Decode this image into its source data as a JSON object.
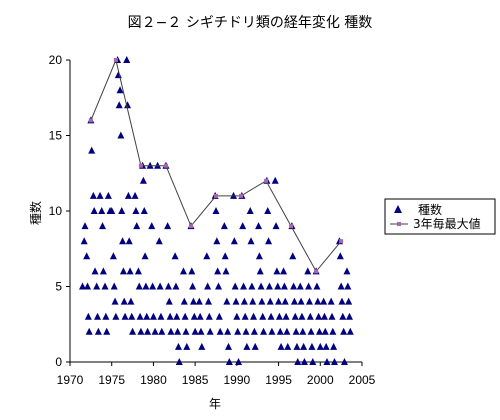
{
  "chart_data": {
    "type": "scatter",
    "title": "図２−２ シギチドリ類の経年変化 種数",
    "xlabel": "年",
    "ylabel": "種数",
    "xlim": [
      1970,
      2005
    ],
    "ylim": [
      0,
      20
    ],
    "xticks": [
      1970,
      1975,
      1980,
      1985,
      1990,
      1995,
      2000,
      2005
    ],
    "yticks": [
      0,
      5,
      10,
      15,
      20
    ],
    "grid": false,
    "legend_position": "right",
    "colors": {
      "species": "#000080",
      "max_line": "#404040",
      "max_marker": "#aa66aa"
    },
    "series": [
      {
        "name": "種数",
        "marker": "triangle",
        "points": [
          [
            1971.5,
            5
          ],
          [
            1971.7,
            8
          ],
          [
            1971.8,
            9
          ],
          [
            1972,
            7
          ],
          [
            1972.1,
            5
          ],
          [
            1972.2,
            3
          ],
          [
            1972.3,
            2
          ],
          [
            1972.5,
            16
          ],
          [
            1972.6,
            14
          ],
          [
            1972.8,
            11
          ],
          [
            1972.9,
            10
          ],
          [
            1973,
            6
          ],
          [
            1973.2,
            5
          ],
          [
            1973.3,
            3
          ],
          [
            1973.4,
            2
          ],
          [
            1973.6,
            11
          ],
          [
            1973.8,
            10
          ],
          [
            1973.9,
            9
          ],
          [
            1974,
            6
          ],
          [
            1974.2,
            5
          ],
          [
            1974.3,
            3
          ],
          [
            1974.4,
            2
          ],
          [
            1974.6,
            11
          ],
          [
            1974.8,
            10
          ],
          [
            1975,
            10
          ],
          [
            1975.2,
            7
          ],
          [
            1975.3,
            5
          ],
          [
            1975.4,
            4
          ],
          [
            1975.5,
            3
          ],
          [
            1975.7,
            20
          ],
          [
            1975.8,
            19
          ],
          [
            1975.9,
            17
          ],
          [
            1976,
            18
          ],
          [
            1976.1,
            15
          ],
          [
            1976.2,
            10
          ],
          [
            1976.3,
            8
          ],
          [
            1976.4,
            6
          ],
          [
            1976.5,
            4
          ],
          [
            1976.6,
            3
          ],
          [
            1976.8,
            20
          ],
          [
            1976.9,
            17
          ],
          [
            1977,
            11
          ],
          [
            1977.1,
            8
          ],
          [
            1977.2,
            6
          ],
          [
            1977.3,
            4
          ],
          [
            1977.4,
            3
          ],
          [
            1977.5,
            2
          ],
          [
            1977.8,
            11
          ],
          [
            1977.9,
            10
          ],
          [
            1978,
            9
          ],
          [
            1978.2,
            6
          ],
          [
            1978.3,
            5
          ],
          [
            1978.4,
            3
          ],
          [
            1978.5,
            2
          ],
          [
            1978.7,
            13
          ],
          [
            1978.8,
            12
          ],
          [
            1978.9,
            10
          ],
          [
            1979,
            7
          ],
          [
            1979.1,
            5
          ],
          [
            1979.2,
            3
          ],
          [
            1979.3,
            2
          ],
          [
            1979.6,
            13
          ],
          [
            1979.8,
            9
          ],
          [
            1979.9,
            5
          ],
          [
            1980,
            3
          ],
          [
            1980.2,
            2
          ],
          [
            1980.5,
            13
          ],
          [
            1980.7,
            8
          ],
          [
            1980.8,
            5
          ],
          [
            1980.9,
            3
          ],
          [
            1981,
            2
          ],
          [
            1981.5,
            13
          ],
          [
            1981.7,
            9
          ],
          [
            1981.8,
            5
          ],
          [
            1981.9,
            4
          ],
          [
            1982,
            3
          ],
          [
            1982.1,
            2
          ],
          [
            1982.6,
            7
          ],
          [
            1982.7,
            5
          ],
          [
            1982.8,
            3
          ],
          [
            1982.9,
            2
          ],
          [
            1983,
            1
          ],
          [
            1983.1,
            0
          ],
          [
            1983.6,
            6
          ],
          [
            1983.7,
            4
          ],
          [
            1983.8,
            3
          ],
          [
            1983.9,
            2
          ],
          [
            1984,
            1
          ],
          [
            1984.5,
            9
          ],
          [
            1984.6,
            6
          ],
          [
            1984.7,
            5
          ],
          [
            1984.8,
            4
          ],
          [
            1984.9,
            3
          ],
          [
            1985,
            2
          ],
          [
            1985.5,
            4
          ],
          [
            1985.6,
            3
          ],
          [
            1985.7,
            2
          ],
          [
            1985.8,
            1
          ],
          [
            1986.4,
            7
          ],
          [
            1986.5,
            5
          ],
          [
            1986.6,
            4
          ],
          [
            1986.7,
            3
          ],
          [
            1986.8,
            2
          ],
          [
            1987.4,
            11
          ],
          [
            1987.5,
            10
          ],
          [
            1987.6,
            8
          ],
          [
            1987.7,
            6
          ],
          [
            1987.8,
            5
          ],
          [
            1987.9,
            3
          ],
          [
            1988,
            2
          ],
          [
            1988.5,
            9
          ],
          [
            1988.6,
            7
          ],
          [
            1988.7,
            6
          ],
          [
            1988.8,
            4
          ],
          [
            1988.9,
            2
          ],
          [
            1989,
            1
          ],
          [
            1989.1,
            0
          ],
          [
            1989.6,
            11
          ],
          [
            1989.7,
            8
          ],
          [
            1989.8,
            5
          ],
          [
            1989.9,
            4
          ],
          [
            1990,
            3
          ],
          [
            1990.1,
            2
          ],
          [
            1990.2,
            0
          ],
          [
            1990.6,
            11
          ],
          [
            1990.7,
            9
          ],
          [
            1990.8,
            5
          ],
          [
            1990.9,
            4
          ],
          [
            1991,
            3
          ],
          [
            1991.1,
            2
          ],
          [
            1991.2,
            1
          ],
          [
            1991.6,
            10
          ],
          [
            1991.7,
            8
          ],
          [
            1991.8,
            5
          ],
          [
            1991.9,
            4
          ],
          [
            1992,
            3
          ],
          [
            1992.1,
            2
          ],
          [
            1992.2,
            1
          ],
          [
            1992.6,
            9
          ],
          [
            1992.7,
            7
          ],
          [
            1992.8,
            6
          ],
          [
            1992.9,
            5
          ],
          [
            1993,
            4
          ],
          [
            1993.1,
            3
          ],
          [
            1993.2,
            2
          ],
          [
            1993.6,
            12
          ],
          [
            1993.7,
            10
          ],
          [
            1993.8,
            8
          ],
          [
            1993.9,
            5
          ],
          [
            1994,
            4
          ],
          [
            1994.1,
            3
          ],
          [
            1994.2,
            2
          ],
          [
            1994.6,
            12
          ],
          [
            1994.7,
            9
          ],
          [
            1994.8,
            6
          ],
          [
            1994.9,
            5
          ],
          [
            1995,
            4
          ],
          [
            1995.1,
            3
          ],
          [
            1995.2,
            2
          ],
          [
            1995.3,
            1
          ],
          [
            1995.6,
            6
          ],
          [
            1995.7,
            5
          ],
          [
            1995.8,
            4
          ],
          [
            1995.9,
            3
          ],
          [
            1996,
            2
          ],
          [
            1996.1,
            1
          ],
          [
            1996.6,
            9
          ],
          [
            1996.7,
            7
          ],
          [
            1996.8,
            5
          ],
          [
            1996.9,
            4
          ],
          [
            1997,
            3
          ],
          [
            1997.1,
            2
          ],
          [
            1997.2,
            1
          ],
          [
            1997.3,
            0
          ],
          [
            1997.6,
            5
          ],
          [
            1997.7,
            4
          ],
          [
            1997.8,
            3
          ],
          [
            1997.9,
            2
          ],
          [
            1998,
            1
          ],
          [
            1998.1,
            0
          ],
          [
            1998.5,
            6
          ],
          [
            1998.6,
            5
          ],
          [
            1998.7,
            4
          ],
          [
            1998.8,
            3
          ],
          [
            1998.9,
            2
          ],
          [
            1999,
            1
          ],
          [
            1999.1,
            0
          ],
          [
            1999.5,
            6
          ],
          [
            1999.6,
            5
          ],
          [
            1999.7,
            4
          ],
          [
            1999.8,
            3
          ],
          [
            1999.9,
            2
          ],
          [
            2000,
            1
          ],
          [
            2000.4,
            4
          ],
          [
            2000.5,
            3
          ],
          [
            2000.6,
            2
          ],
          [
            2000.7,
            1
          ],
          [
            2000.8,
            0
          ],
          [
            2001.3,
            4
          ],
          [
            2001.4,
            3
          ],
          [
            2001.5,
            2
          ],
          [
            2001.6,
            1
          ],
          [
            2001.7,
            0
          ],
          [
            2002.3,
            8
          ],
          [
            2002.4,
            7
          ],
          [
            2002.5,
            5
          ],
          [
            2002.6,
            4
          ],
          [
            2002.7,
            3
          ],
          [
            2002.8,
            2
          ],
          [
            2002.9,
            0
          ],
          [
            2003.2,
            6
          ],
          [
            2003.3,
            5
          ],
          [
            2003.4,
            4
          ],
          [
            2003.5,
            3
          ],
          [
            2003.6,
            2
          ]
        ]
      },
      {
        "name": "3年毎最大値",
        "marker": "square-line",
        "points": [
          [
            1972.5,
            16
          ],
          [
            1975.5,
            20
          ],
          [
            1978.5,
            13
          ],
          [
            1981.5,
            13
          ],
          [
            1984.5,
            9
          ],
          [
            1987.5,
            11
          ],
          [
            1990.5,
            11
          ],
          [
            1993.5,
            12
          ],
          [
            1996.5,
            9
          ],
          [
            1999.5,
            6
          ],
          [
            2002.5,
            8
          ]
        ]
      }
    ]
  }
}
